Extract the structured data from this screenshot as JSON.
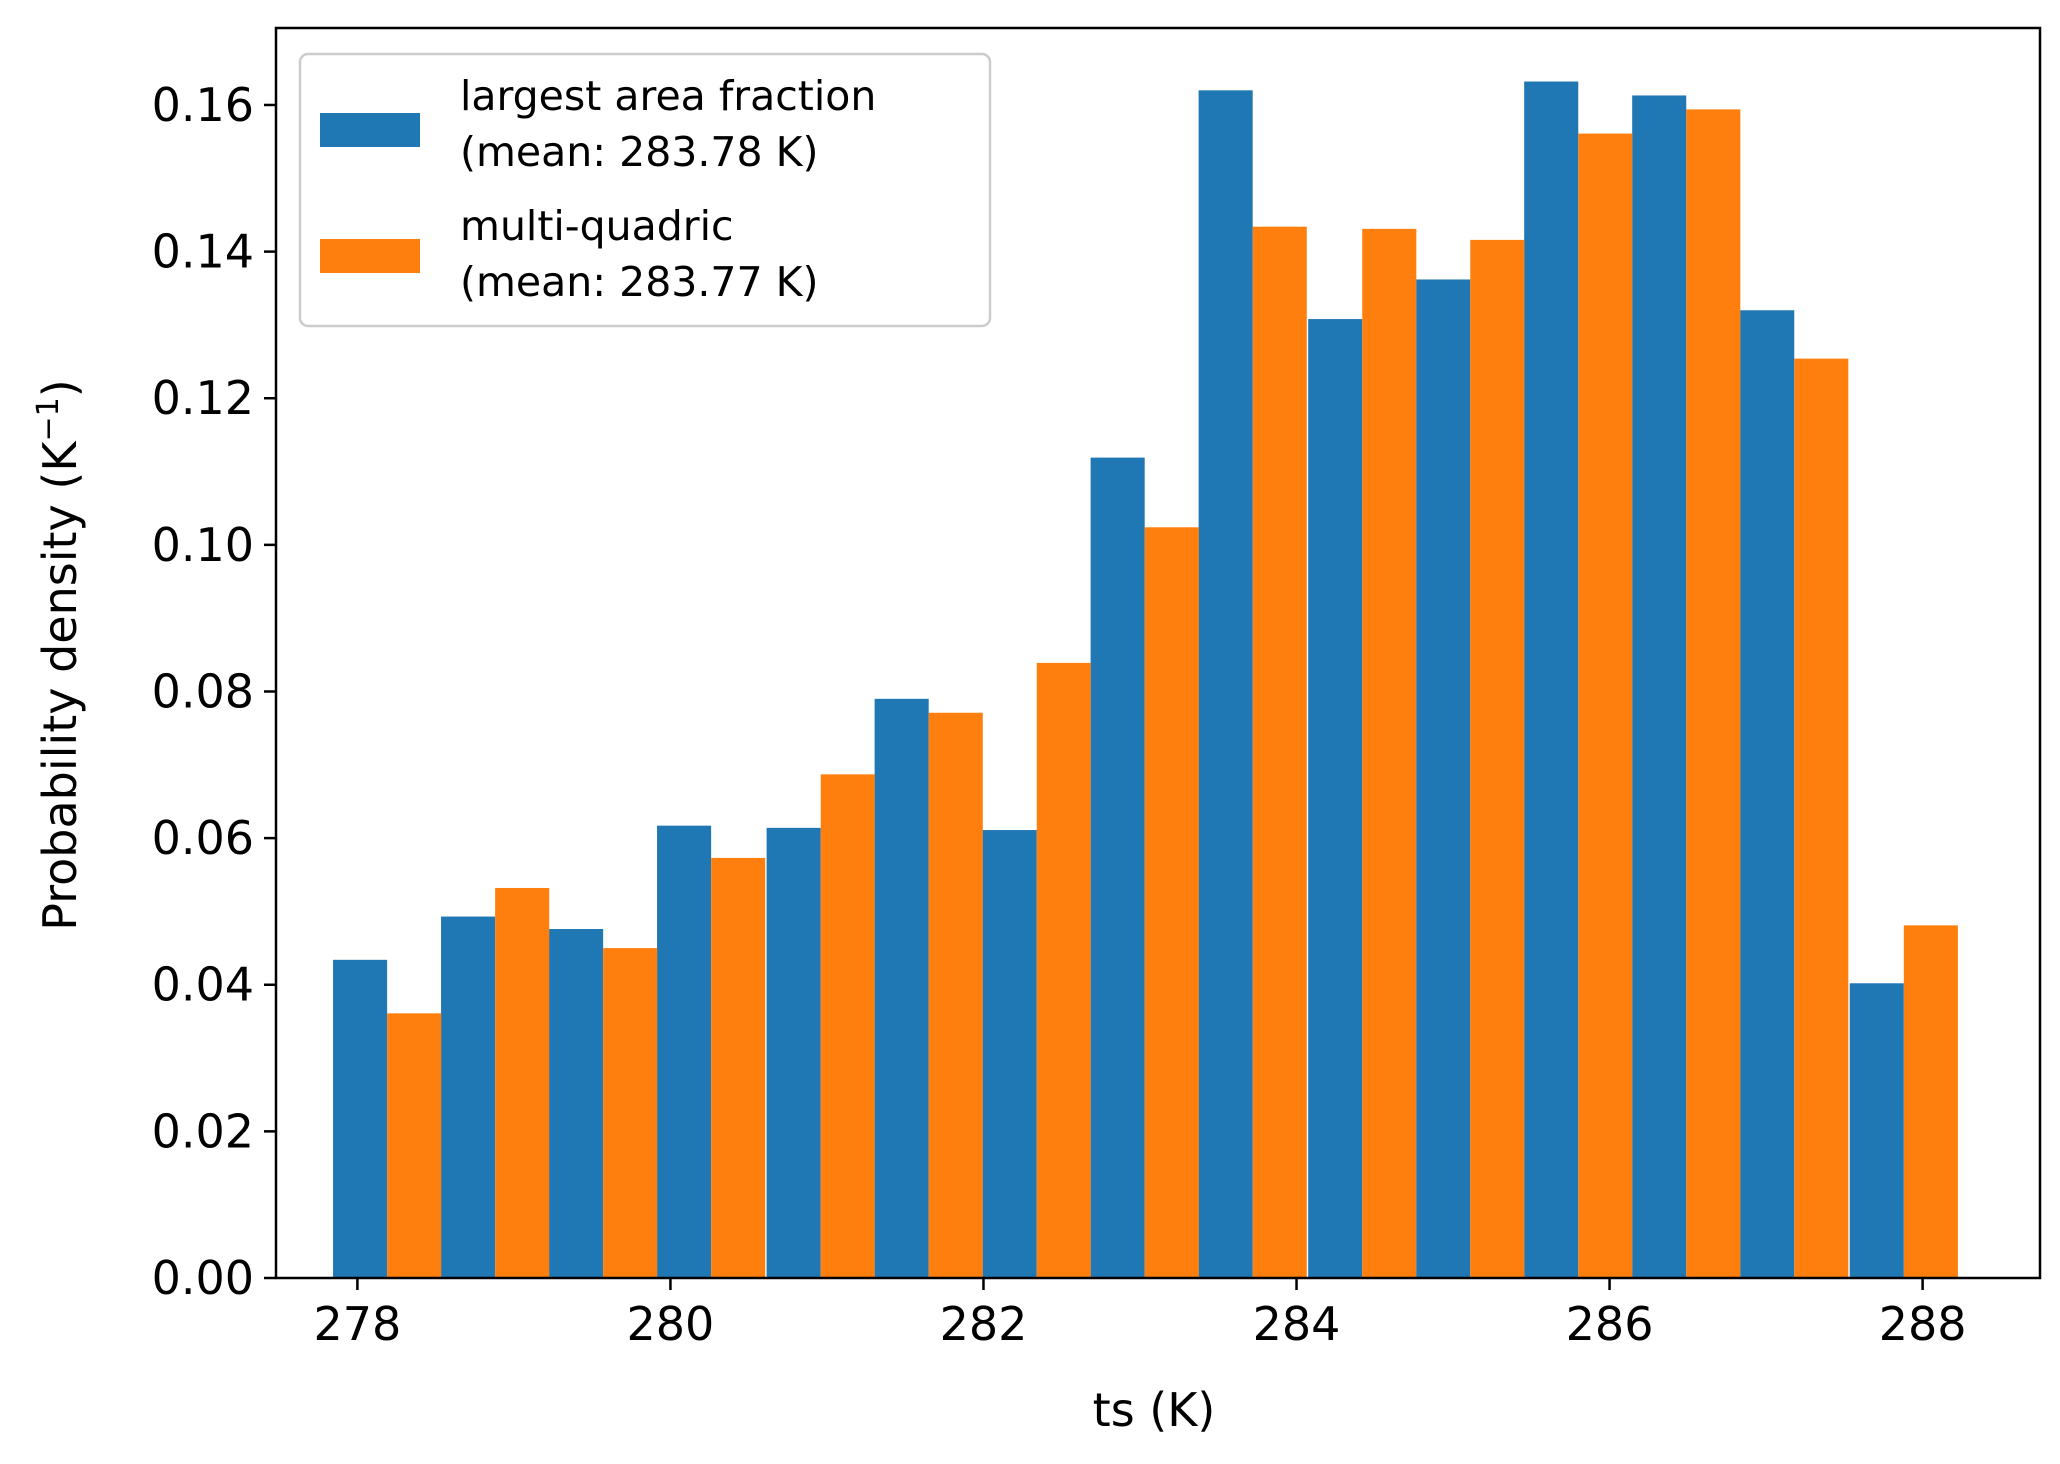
{
  "chart_data": {
    "type": "bar",
    "xlabel": "ts (K)",
    "ylabel_main": "Probability density (K",
    "ylabel_sup": "−1",
    "ylabel_close": ")",
    "xlim": [
      277.48,
      288.75
    ],
    "ylim": [
      0,
      0.1705
    ],
    "xticks": [
      278,
      280,
      282,
      284,
      286,
      288
    ],
    "yticks": [
      0.0,
      0.02,
      0.04,
      0.06,
      0.08,
      0.1,
      0.12,
      0.14,
      0.16
    ],
    "x": [
      278.19,
      278.88,
      279.57,
      280.26,
      280.96,
      281.65,
      282.34,
      283.03,
      283.72,
      284.42,
      285.11,
      285.8,
      286.49,
      287.18,
      287.88
    ],
    "bin_width": 0.691,
    "grid": false,
    "legend_position": "upper left",
    "series": [
      {
        "name_line1": "largest area fraction",
        "name_line2": "(mean: 283.78 K)",
        "color": "#1f77b4",
        "values": [
          0.0434,
          0.0493,
          0.0476,
          0.0617,
          0.0614,
          0.079,
          0.0611,
          0.1119,
          0.162,
          0.1308,
          0.1362,
          0.1632,
          0.1613,
          0.132,
          0.0402
        ]
      },
      {
        "name_line1": "multi-quadric",
        "name_line2": "(mean: 283.77 K)",
        "color": "#ff7f0e",
        "values": [
          0.0361,
          0.0532,
          0.045,
          0.0573,
          0.0687,
          0.0771,
          0.0839,
          0.1024,
          0.1434,
          0.1431,
          0.1416,
          0.1561,
          0.1594,
          0.1254,
          0.0481
        ]
      }
    ]
  }
}
